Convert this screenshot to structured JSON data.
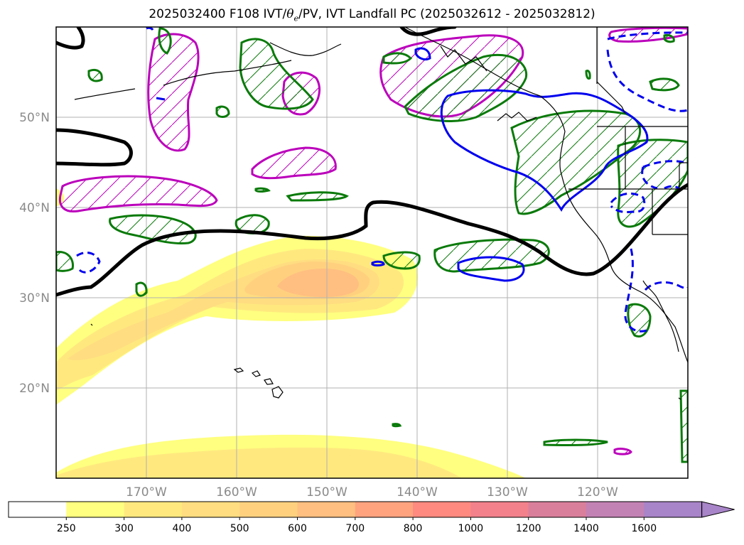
{
  "title": {
    "prefix": "2025032400 F108 IVT/",
    "theta": "θ",
    "theta_sub": "e",
    "suffix": "/PV, IVT Landfall PC (2025032612 - 2025032812)"
  },
  "lat_labels": [
    "50°N",
    "40°N",
    "30°N",
    "20°N"
  ],
  "lon_labels": [
    "170°W",
    "160°W",
    "150°W",
    "140°W",
    "130°W",
    "120°W"
  ],
  "colorbar": {
    "levels": [
      "250",
      "300",
      "400",
      "500",
      "600",
      "700",
      "800",
      "1000",
      "1200",
      "1400",
      "1600"
    ],
    "colors": [
      "#ffffff",
      "#ffff80",
      "#ffe97f",
      "#ffdd80",
      "#ffd17f",
      "#ffbf80",
      "#ffa37f",
      "#ff8a80",
      "#f2818c",
      "#d97f9c",
      "#c382b4",
      "#a884c8"
    ]
  },
  "legend_colors": {
    "ar_axis": "#000000",
    "theta_e": "#0000ee",
    "pv": "#0a7a0a",
    "ivt_pc": "#bb00bb"
  }
}
